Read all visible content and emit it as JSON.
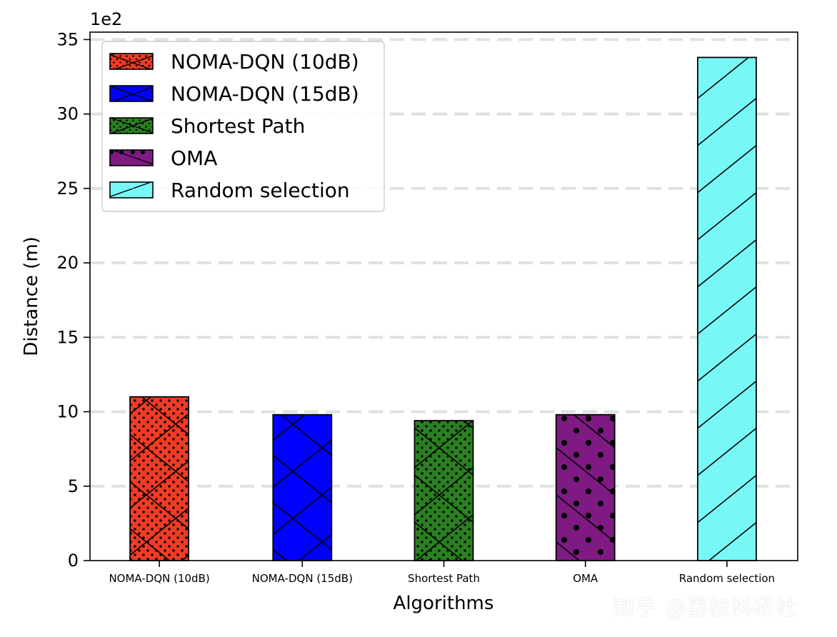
{
  "chart_data": {
    "type": "bar",
    "categories": [
      "NOMA-DQN (10dB)",
      "NOMA-DQN (15dB)",
      "Shortest Path",
      "OMA",
      "Random selection"
    ],
    "values": [
      11.0,
      9.8,
      9.4,
      9.8,
      33.8
    ],
    "scale_label": "1e2",
    "xlabel": "Algorithms",
    "ylabel": "Distance (m)",
    "ylim": [
      0,
      35.5
    ],
    "yticks": [
      0,
      5,
      10,
      15,
      20,
      25,
      30,
      35
    ],
    "grid": "horizontal dashed",
    "legend_position": "top-left",
    "legend": [
      "NOMA-DQN (10dB)",
      "NOMA-DQN (15dB)",
      "Shortest Path",
      "OMA",
      "Random selection"
    ],
    "colors": [
      "#f03c24",
      "#0000ff",
      "#2a8020",
      "#7e1a82",
      "#78f7f7"
    ],
    "hatches": [
      "x.",
      "x",
      "x.",
      "\\.",
      "/"
    ]
  },
  "watermark": "知乎 @荔枝科研社"
}
